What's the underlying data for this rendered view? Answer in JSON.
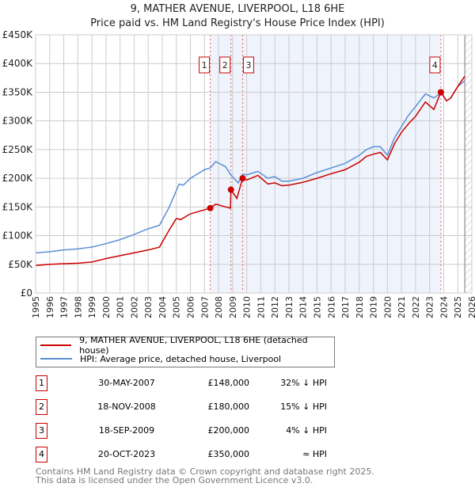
{
  "title": "9, MATHER AVENUE, LIVERPOOL, L18 6HE",
  "subtitle": "Price paid vs. HM Land Registry's House Price Index (HPI)",
  "colors": {
    "price": "#cc0000",
    "hpi": "#5b8fd4",
    "shade": "#eef3fc",
    "grid": "#cccccc"
  },
  "chart_data": {
    "type": "line",
    "title": "9, MATHER AVENUE, LIVERPOOL, L18 6HE",
    "xlim": [
      1995,
      2026
    ],
    "ylim": [
      0,
      450000
    ],
    "x_ticks": [
      "1995",
      "1996",
      "1997",
      "1998",
      "1999",
      "2000",
      "2001",
      "2002",
      "2003",
      "2004",
      "2005",
      "2006",
      "2007",
      "2008",
      "2009",
      "2010",
      "2011",
      "2012",
      "2013",
      "2014",
      "2015",
      "2016",
      "2017",
      "2018",
      "2019",
      "2020",
      "2021",
      "2022",
      "2023",
      "2024",
      "2025",
      "2026"
    ],
    "y_ticks": [
      {
        "v": 0,
        "label": "£0"
      },
      {
        "v": 50000,
        "label": "£50K"
      },
      {
        "v": 100000,
        "label": "£100K"
      },
      {
        "v": 150000,
        "label": "£150K"
      },
      {
        "v": 200000,
        "label": "£200K"
      },
      {
        "v": 250000,
        "label": "£250K"
      },
      {
        "v": 300000,
        "label": "£300K"
      },
      {
        "v": 350000,
        "label": "£350K"
      },
      {
        "v": 400000,
        "label": "£400K"
      },
      {
        "v": 450000,
        "label": "£450K"
      }
    ],
    "grid": true,
    "shaded_range": [
      2007.41,
      2023.8
    ],
    "forecast_hatch_from": 2025.5,
    "series": [
      {
        "name": "9, MATHER AVENUE, LIVERPOOL, L18 6HE (detached house)",
        "key": "price",
        "points": [
          [
            1995,
            48000
          ],
          [
            1996,
            50000
          ],
          [
            1997,
            51000
          ],
          [
            1998,
            52000
          ],
          [
            1999,
            54000
          ],
          [
            2000,
            60000
          ],
          [
            2001,
            65000
          ],
          [
            2002,
            70000
          ],
          [
            2003,
            75000
          ],
          [
            2003.8,
            80000
          ],
          [
            2004.5,
            110000
          ],
          [
            2005,
            130000
          ],
          [
            2005.3,
            128000
          ],
          [
            2006,
            138000
          ],
          [
            2007,
            145000
          ],
          [
            2007.41,
            148000
          ],
          [
            2007.8,
            155000
          ],
          [
            2008.5,
            150000
          ],
          [
            2008.85,
            148000
          ],
          [
            2008.88,
            180000
          ],
          [
            2009.3,
            165000
          ],
          [
            2009.71,
            200000
          ],
          [
            2010,
            197000
          ],
          [
            2010.8,
            205000
          ],
          [
            2011.5,
            190000
          ],
          [
            2012,
            192000
          ],
          [
            2012.5,
            187000
          ],
          [
            2013,
            188000
          ],
          [
            2014,
            193000
          ],
          [
            2015,
            200000
          ],
          [
            2016,
            208000
          ],
          [
            2017,
            215000
          ],
          [
            2018,
            228000
          ],
          [
            2018.5,
            238000
          ],
          [
            2019,
            242000
          ],
          [
            2019.5,
            245000
          ],
          [
            2020,
            232000
          ],
          [
            2020.5,
            260000
          ],
          [
            2021,
            280000
          ],
          [
            2021.5,
            295000
          ],
          [
            2022,
            308000
          ],
          [
            2022.7,
            333000
          ],
          [
            2023.3,
            320000
          ],
          [
            2023.8,
            350000
          ],
          [
            2024.2,
            335000
          ],
          [
            2024.5,
            340000
          ],
          [
            2025,
            360000
          ],
          [
            2025.5,
            378000
          ]
        ]
      },
      {
        "name": "HPI: Average price, detached house, Liverpool",
        "key": "hpi",
        "points": [
          [
            1995,
            70000
          ],
          [
            1996,
            72000
          ],
          [
            1997,
            75000
          ],
          [
            1998,
            77000
          ],
          [
            1999,
            80000
          ],
          [
            2000,
            86000
          ],
          [
            2001,
            93000
          ],
          [
            2002,
            102000
          ],
          [
            2003,
            112000
          ],
          [
            2003.8,
            118000
          ],
          [
            2004.5,
            150000
          ],
          [
            2005.2,
            190000
          ],
          [
            2005.5,
            188000
          ],
          [
            2006,
            200000
          ],
          [
            2007,
            215000
          ],
          [
            2007.4,
            218000
          ],
          [
            2007.8,
            229000
          ],
          [
            2008.5,
            220000
          ],
          [
            2008.9,
            205000
          ],
          [
            2009.4,
            192000
          ],
          [
            2009.7,
            207000
          ],
          [
            2010,
            206000
          ],
          [
            2010.8,
            212000
          ],
          [
            2011.5,
            200000
          ],
          [
            2012,
            203000
          ],
          [
            2012.5,
            195000
          ],
          [
            2013,
            195000
          ],
          [
            2014,
            200000
          ],
          [
            2015,
            210000
          ],
          [
            2016,
            218000
          ],
          [
            2017,
            226000
          ],
          [
            2018,
            240000
          ],
          [
            2018.5,
            250000
          ],
          [
            2019,
            255000
          ],
          [
            2019.5,
            255000
          ],
          [
            2020,
            240000
          ],
          [
            2020.5,
            270000
          ],
          [
            2021,
            290000
          ],
          [
            2021.5,
            310000
          ],
          [
            2022,
            325000
          ],
          [
            2022.7,
            347000
          ],
          [
            2023.3,
            340000
          ],
          [
            2023.6,
            345000
          ],
          [
            2023.8,
            350000
          ],
          [
            2024.2,
            335000
          ],
          [
            2024.5,
            340000
          ],
          [
            2025,
            360000
          ],
          [
            2025.5,
            370000
          ]
        ]
      }
    ],
    "sales": [
      {
        "n": "1",
        "x": 2007.41,
        "y": 148000
      },
      {
        "n": "2",
        "x": 2008.88,
        "y": 180000
      },
      {
        "n": "3",
        "x": 2009.71,
        "y": 200000
      },
      {
        "n": "4",
        "x": 2023.8,
        "y": 350000
      }
    ]
  },
  "legend": {
    "price": "9, MATHER AVENUE, LIVERPOOL, L18 6HE (detached house)",
    "hpi": "HPI: Average price, detached house, Liverpool"
  },
  "table": [
    {
      "n": "1",
      "date": "30-MAY-2007",
      "price": "£148,000",
      "hpi": "32% ↓ HPI"
    },
    {
      "n": "2",
      "date": "18-NOV-2008",
      "price": "£180,000",
      "hpi": "15% ↓ HPI"
    },
    {
      "n": "3",
      "date": "18-SEP-2009",
      "price": "£200,000",
      "hpi": "4% ↓ HPI"
    },
    {
      "n": "4",
      "date": "20-OCT-2023",
      "price": "£350,000",
      "hpi": "≈ HPI"
    }
  ],
  "footer": [
    "Contains HM Land Registry data © Crown copyright and database right 2025.",
    "This data is licensed under the Open Government Licence v3.0."
  ]
}
